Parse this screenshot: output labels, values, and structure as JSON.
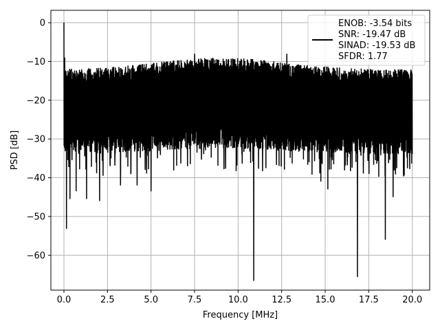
{
  "chart_data": {
    "type": "line",
    "title": "",
    "xlabel": "Frequency [MHz]",
    "ylabel": "PSD [dB]",
    "xlim": [
      -0.75,
      21.0
    ],
    "ylim": [
      -69.0,
      3.2
    ],
    "xticks": [
      0.0,
      2.5,
      5.0,
      7.5,
      10.0,
      12.5,
      15.0,
      17.5,
      20.0
    ],
    "xtick_labels": [
      "0.0",
      "2.5",
      "5.0",
      "7.5",
      "10.0",
      "12.5",
      "15.0",
      "17.5",
      "20.0"
    ],
    "yticks": [
      0,
      -10,
      -20,
      -30,
      -40,
      -50,
      -60
    ],
    "ytick_labels": [
      "0",
      "−10",
      "−20",
      "−30",
      "−40",
      "−50",
      "−60"
    ],
    "grid": true,
    "legend_position": "top-right",
    "series": [
      {
        "color": "#000000",
        "x_start": 0.0,
        "x_end": 20.0,
        "noise_band_top": -14,
        "noise_band_bottom": -30,
        "peaks": [
          {
            "x": 0.0,
            "y": 0
          },
          {
            "x": 0.05,
            "y": -9
          },
          {
            "x": 0.1,
            "y": -16
          },
          {
            "x": 7.5,
            "y": -8
          },
          {
            "x": 12.8,
            "y": -8
          }
        ],
        "dips": [
          {
            "x": 0.15,
            "y": -53.2
          },
          {
            "x": 0.35,
            "y": -45.5
          },
          {
            "x": 0.7,
            "y": -43.5
          },
          {
            "x": 1.3,
            "y": -45.5
          },
          {
            "x": 2.05,
            "y": -46.0
          },
          {
            "x": 3.25,
            "y": -42.0
          },
          {
            "x": 4.2,
            "y": -42.0
          },
          {
            "x": 5.0,
            "y": -43.5
          },
          {
            "x": 10.9,
            "y": -66.6
          },
          {
            "x": 14.75,
            "y": -41.0
          },
          {
            "x": 15.15,
            "y": -43.0
          },
          {
            "x": 16.85,
            "y": -65.6
          },
          {
            "x": 18.45,
            "y": -56.0
          },
          {
            "x": 18.9,
            "y": -45.0
          }
        ]
      }
    ],
    "legend": {
      "lines": [
        "ENOB: -3.54 bits",
        "SNR: -19.47 dB",
        "SINAD: -19.53 dB",
        "SFDR: 1.77"
      ]
    }
  }
}
